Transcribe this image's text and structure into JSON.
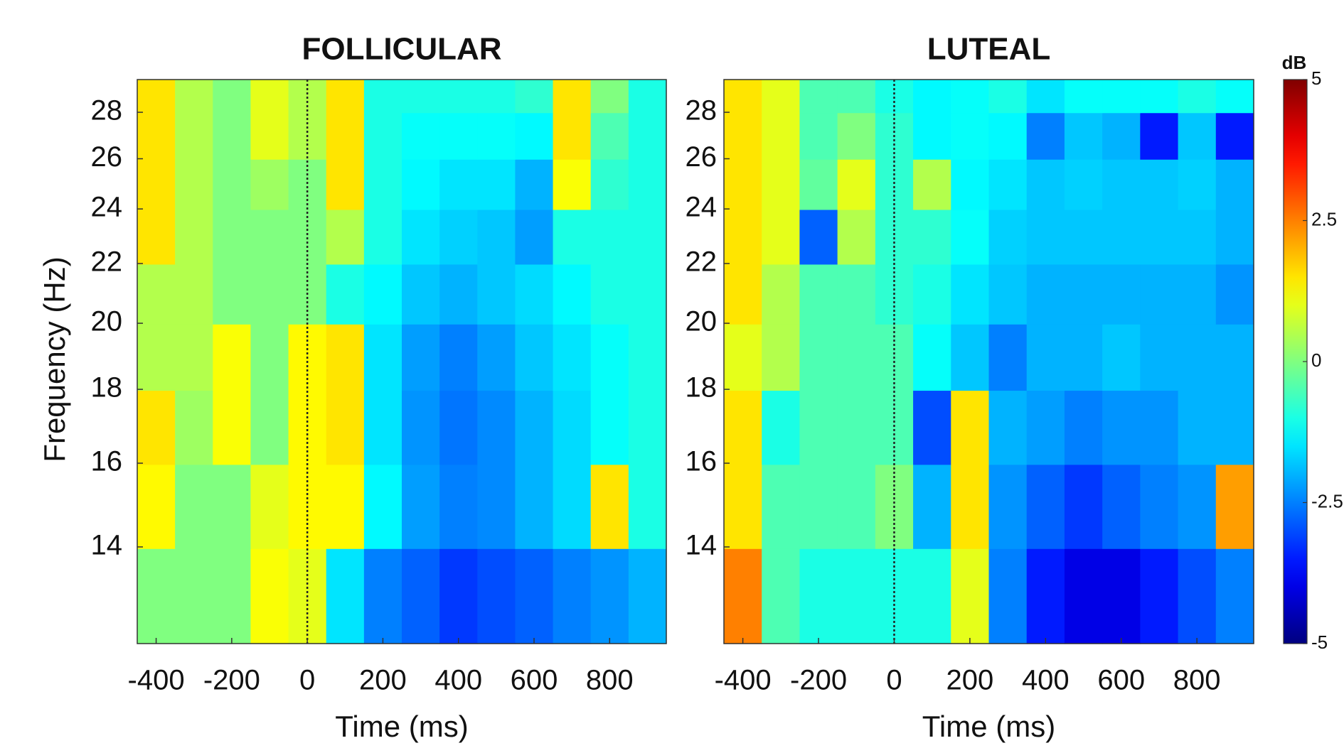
{
  "chart_data": [
    {
      "type": "heatmap",
      "title": "FOLLICULAR",
      "xlabel": "Time (ms)",
      "ylabel": "Frequency (Hz)",
      "x": [
        -400,
        -300,
        -200,
        -100,
        0,
        100,
        200,
        300,
        400,
        500,
        600,
        700,
        800,
        900
      ],
      "y": [
        13,
        15,
        17,
        19,
        21,
        23,
        25,
        27,
        29
      ],
      "z": [
        [
          0,
          0,
          0,
          1.2,
          1,
          -1.5,
          -2.5,
          -2.8,
          -3.2,
          -3,
          -2.8,
          -2.5,
          -2.3,
          -2
        ],
        [
          1.3,
          0,
          0,
          1,
          1.3,
          1.3,
          -1.3,
          -2.2,
          -2.5,
          -2.4,
          -2,
          -1.6,
          1.5,
          -1
        ],
        [
          1.5,
          0.3,
          1.2,
          0,
          1.3,
          1.5,
          -1.5,
          -2.3,
          -2.6,
          -2.4,
          -2,
          -1.6,
          -1.2,
          -1
        ],
        [
          0.5,
          0.5,
          1.2,
          0,
          1.3,
          1.5,
          -1.5,
          -2.2,
          -2.5,
          -2.2,
          -1.8,
          -1.5,
          -1.2,
          -1
        ],
        [
          0.5,
          0.5,
          0,
          0,
          0,
          -1,
          -1.3,
          -1.8,
          -2,
          -1.8,
          -1.6,
          -1.3,
          -1,
          -1
        ],
        [
          1.5,
          0.5,
          0,
          0,
          0,
          0.5,
          -1,
          -1.5,
          -1.7,
          -1.8,
          -2.2,
          -1,
          -1,
          -1
        ],
        [
          1.5,
          0.5,
          0,
          0.3,
          0,
          1.5,
          -1,
          -1.3,
          -1.5,
          -1.5,
          -2,
          1.2,
          -0.8,
          -1
        ],
        [
          1.5,
          0.5,
          0,
          1,
          0.5,
          1.5,
          -1,
          -1.2,
          -1.2,
          -1.2,
          -1.3,
          1.5,
          -0.5,
          -1
        ],
        [
          1.5,
          0.5,
          0,
          1,
          0.5,
          1.5,
          -1,
          -1,
          -1,
          -1,
          -0.8,
          1.5,
          0,
          -1
        ]
      ],
      "xlim": [
        -450,
        950
      ],
      "ylim": [
        12,
        29.5
      ],
      "ylog": true,
      "xticks": [
        -400,
        -200,
        0,
        200,
        400,
        600,
        800
      ],
      "yticks": [
        14,
        16,
        18,
        20,
        22,
        24,
        26,
        28
      ],
      "vline": 0
    },
    {
      "type": "heatmap",
      "title": "LUTEAL",
      "xlabel": "Time (ms)",
      "x": [
        -400,
        -300,
        -200,
        -100,
        0,
        100,
        200,
        300,
        400,
        500,
        600,
        700,
        800,
        900
      ],
      "y": [
        13,
        15,
        17,
        19,
        21,
        23,
        25,
        27,
        29
      ],
      "z": [
        [
          2.5,
          -0.5,
          -1,
          -1,
          -1,
          -1,
          1,
          -2.5,
          -3.5,
          -4,
          -4,
          -3.5,
          -3,
          -2.5
        ],
        [
          1.5,
          -0.5,
          -0.5,
          -0.5,
          0,
          -2,
          1.5,
          -2.3,
          -2.8,
          -3.2,
          -2.8,
          -2.5,
          -2.3,
          2.2
        ],
        [
          1.5,
          -1,
          -0.5,
          -0.5,
          -0.5,
          -3,
          1.5,
          -2,
          -2.2,
          -2.5,
          -2.3,
          -2.3,
          -2,
          -2
        ],
        [
          1,
          0.5,
          -0.5,
          -0.5,
          -0.5,
          -1.2,
          -1.8,
          -2.5,
          -2,
          -2,
          -1.8,
          -2,
          -2,
          -2
        ],
        [
          1.5,
          0.5,
          -0.5,
          -0.5,
          -0.8,
          -1,
          -1.5,
          -1.8,
          -2,
          -2,
          -2,
          -2,
          -2,
          -2.3
        ],
        [
          1.5,
          1,
          -2.8,
          0.5,
          -0.8,
          -0.8,
          -1.2,
          -1.7,
          -1.8,
          -1.8,
          -1.8,
          -1.8,
          -1.8,
          -2
        ],
        [
          1.5,
          1,
          -0.3,
          1,
          -0.8,
          0.5,
          -1.3,
          -1.5,
          -1.8,
          -1.7,
          -1.8,
          -1.8,
          -1.7,
          -2
        ],
        [
          1.5,
          1,
          -0.5,
          0,
          -0.8,
          -1.3,
          -1.2,
          -1.3,
          -2.5,
          -1.8,
          -2,
          -3.5,
          -1.8,
          -3.5
        ],
        [
          1.5,
          1,
          -0.5,
          -0.5,
          -1,
          -1.3,
          -1.2,
          -1,
          -1.5,
          -1.2,
          -1.2,
          -1.2,
          -1,
          -1.2
        ]
      ],
      "xlim": [
        -450,
        950
      ],
      "ylim": [
        12,
        29.5
      ],
      "ylog": true,
      "xticks": [
        -400,
        -200,
        0,
        200,
        400,
        600,
        800
      ],
      "yticks": [
        14,
        16,
        18,
        20,
        22,
        24,
        26,
        28
      ],
      "vline": 0
    }
  ],
  "colorbar": {
    "label": "dB",
    "colormap": "jet",
    "clim": [
      -5,
      5
    ],
    "ticks": [
      5,
      2.5,
      0,
      -2.5,
      -5
    ]
  }
}
